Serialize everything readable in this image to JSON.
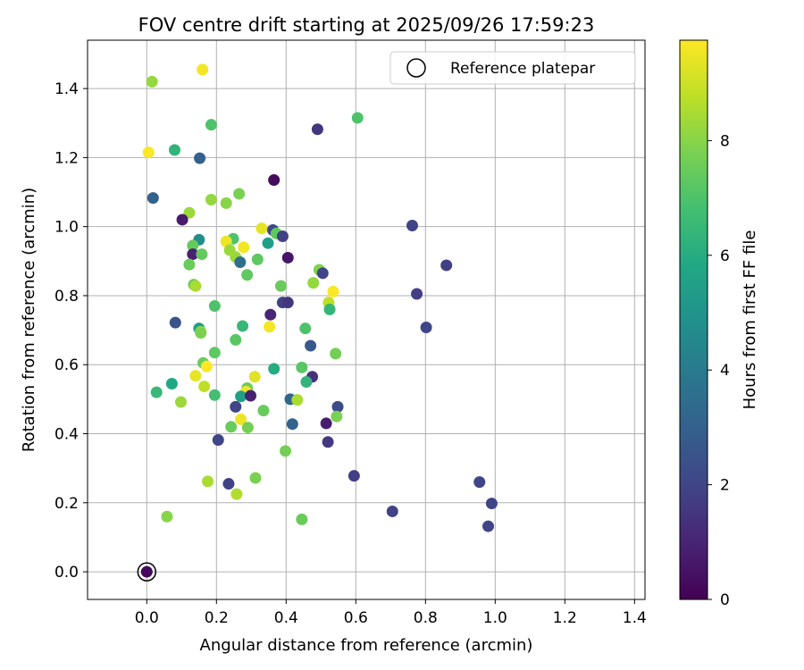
{
  "chart_data": {
    "type": "scatter",
    "title": "FOV centre drift starting at 2025/09/26 17:59:23",
    "xlabel": "Angular distance from reference (arcmin)",
    "ylabel": "Rotation from reference (arcmin)",
    "xlim": [
      -0.17,
      1.43
    ],
    "ylim": [
      -0.08,
      1.54
    ],
    "xticks": [
      0.0,
      0.2,
      0.4,
      0.6,
      0.8,
      1.0,
      1.2,
      1.4
    ],
    "xtick_labels": [
      "0.0",
      "0.2",
      "0.4",
      "0.6",
      "0.8",
      "1.0",
      "1.2",
      "1.4"
    ],
    "yticks": [
      0.0,
      0.2,
      0.4,
      0.6,
      0.8,
      1.0,
      1.2,
      1.4
    ],
    "ytick_labels": [
      "0.0",
      "0.2",
      "0.4",
      "0.6",
      "0.8",
      "1.0",
      "1.2",
      "1.4"
    ],
    "grid": true,
    "legend": {
      "position": "top-right",
      "entries": [
        "Reference platepar"
      ]
    },
    "reference_point": {
      "x": 0.0,
      "y": 0.0,
      "hours": 0.0
    },
    "colorbar": {
      "label": "Hours from first FF file",
      "colormap": "viridis",
      "range": [
        0,
        9.75
      ],
      "ticks": [
        0,
        2,
        4,
        6,
        8
      ],
      "tick_labels": [
        "0",
        "2",
        "4",
        "6",
        "8"
      ]
    },
    "points": [
      {
        "x": 0.16,
        "y": 1.455,
        "h": 9.6
      },
      {
        "x": 0.015,
        "y": 1.42,
        "h": 8.2
      },
      {
        "x": 0.605,
        "y": 1.315,
        "h": 7.0
      },
      {
        "x": 0.185,
        "y": 1.295,
        "h": 7.0
      },
      {
        "x": 0.49,
        "y": 1.282,
        "h": 1.5
      },
      {
        "x": 0.08,
        "y": 1.222,
        "h": 6.3
      },
      {
        "x": 0.005,
        "y": 1.215,
        "h": 9.7
      },
      {
        "x": 0.152,
        "y": 1.198,
        "h": 3.0
      },
      {
        "x": 0.365,
        "y": 1.135,
        "h": 0.3
      },
      {
        "x": 0.265,
        "y": 1.095,
        "h": 7.8
      },
      {
        "x": 0.018,
        "y": 1.083,
        "h": 3.0
      },
      {
        "x": 0.185,
        "y": 1.078,
        "h": 8.2
      },
      {
        "x": 0.228,
        "y": 1.068,
        "h": 8.0
      },
      {
        "x": 0.122,
        "y": 1.04,
        "h": 8.3
      },
      {
        "x": 0.102,
        "y": 1.02,
        "h": 0.7
      },
      {
        "x": 0.762,
        "y": 1.003,
        "h": 2.0
      },
      {
        "x": 0.33,
        "y": 0.995,
        "h": 9.4
      },
      {
        "x": 0.362,
        "y": 0.99,
        "h": 2.2
      },
      {
        "x": 0.372,
        "y": 0.98,
        "h": 7.3
      },
      {
        "x": 0.39,
        "y": 0.972,
        "h": 1.9
      },
      {
        "x": 0.248,
        "y": 0.965,
        "h": 7.0
      },
      {
        "x": 0.15,
        "y": 0.962,
        "h": 4.7
      },
      {
        "x": 0.228,
        "y": 0.957,
        "h": 9.5
      },
      {
        "x": 0.348,
        "y": 0.952,
        "h": 5.5
      },
      {
        "x": 0.132,
        "y": 0.945,
        "h": 7.4
      },
      {
        "x": 0.278,
        "y": 0.94,
        "h": 9.6
      },
      {
        "x": 0.238,
        "y": 0.932,
        "h": 8.3
      },
      {
        "x": 0.132,
        "y": 0.92,
        "h": 0.9
      },
      {
        "x": 0.158,
        "y": 0.92,
        "h": 7.4
      },
      {
        "x": 0.255,
        "y": 0.912,
        "h": 8.3
      },
      {
        "x": 0.405,
        "y": 0.91,
        "h": 0.6
      },
      {
        "x": 0.318,
        "y": 0.905,
        "h": 7.3
      },
      {
        "x": 0.268,
        "y": 0.897,
        "h": 3.5
      },
      {
        "x": 0.122,
        "y": 0.89,
        "h": 7.5
      },
      {
        "x": 0.86,
        "y": 0.888,
        "h": 1.8
      },
      {
        "x": 0.495,
        "y": 0.875,
        "h": 7.9
      },
      {
        "x": 0.505,
        "y": 0.865,
        "h": 2.0
      },
      {
        "x": 0.288,
        "y": 0.86,
        "h": 7.3
      },
      {
        "x": 0.478,
        "y": 0.837,
        "h": 8.2
      },
      {
        "x": 0.135,
        "y": 0.832,
        "h": 7.5
      },
      {
        "x": 0.14,
        "y": 0.828,
        "h": 8.5
      },
      {
        "x": 0.385,
        "y": 0.828,
        "h": 7.5
      },
      {
        "x": 0.535,
        "y": 0.812,
        "h": 9.7
      },
      {
        "x": 0.775,
        "y": 0.805,
        "h": 1.8
      },
      {
        "x": 0.39,
        "y": 0.78,
        "h": 1.9
      },
      {
        "x": 0.405,
        "y": 0.78,
        "h": 1.5
      },
      {
        "x": 0.522,
        "y": 0.78,
        "h": 8.8
      },
      {
        "x": 0.195,
        "y": 0.77,
        "h": 7.0
      },
      {
        "x": 0.525,
        "y": 0.76,
        "h": 6.4
      },
      {
        "x": 0.355,
        "y": 0.745,
        "h": 1.0
      },
      {
        "x": 0.082,
        "y": 0.722,
        "h": 2.5
      },
      {
        "x": 0.275,
        "y": 0.712,
        "h": 6.5
      },
      {
        "x": 0.352,
        "y": 0.71,
        "h": 9.6
      },
      {
        "x": 0.802,
        "y": 0.708,
        "h": 2.0
      },
      {
        "x": 0.15,
        "y": 0.705,
        "h": 5.4
      },
      {
        "x": 0.455,
        "y": 0.705,
        "h": 7.0
      },
      {
        "x": 0.155,
        "y": 0.695,
        "h": 8.5
      },
      {
        "x": 0.155,
        "y": 0.692,
        "h": 7.8
      },
      {
        "x": 0.255,
        "y": 0.672,
        "h": 7.2
      },
      {
        "x": 0.47,
        "y": 0.655,
        "h": 2.7
      },
      {
        "x": 0.195,
        "y": 0.635,
        "h": 7.3
      },
      {
        "x": 0.542,
        "y": 0.632,
        "h": 7.7
      },
      {
        "x": 0.162,
        "y": 0.605,
        "h": 7.5
      },
      {
        "x": 0.172,
        "y": 0.595,
        "h": 9.7
      },
      {
        "x": 0.365,
        "y": 0.588,
        "h": 6.0
      },
      {
        "x": 0.445,
        "y": 0.592,
        "h": 7.2
      },
      {
        "x": 0.475,
        "y": 0.565,
        "h": 1.4
      },
      {
        "x": 0.31,
        "y": 0.565,
        "h": 9.3
      },
      {
        "x": 0.14,
        "y": 0.568,
        "h": 9.4
      },
      {
        "x": 0.458,
        "y": 0.55,
        "h": 6.3
      },
      {
        "x": 0.072,
        "y": 0.545,
        "h": 5.8
      },
      {
        "x": 0.165,
        "y": 0.537,
        "h": 8.8
      },
      {
        "x": 0.288,
        "y": 0.532,
        "h": 7.5
      },
      {
        "x": 0.028,
        "y": 0.52,
        "h": 6.5
      },
      {
        "x": 0.285,
        "y": 0.522,
        "h": 9.5
      },
      {
        "x": 0.195,
        "y": 0.512,
        "h": 6.8
      },
      {
        "x": 0.27,
        "y": 0.508,
        "h": 5.5
      },
      {
        "x": 0.298,
        "y": 0.51,
        "h": 0.9
      },
      {
        "x": 0.412,
        "y": 0.5,
        "h": 3.2
      },
      {
        "x": 0.432,
        "y": 0.498,
        "h": 8.5
      },
      {
        "x": 0.098,
        "y": 0.492,
        "h": 8.3
      },
      {
        "x": 0.255,
        "y": 0.478,
        "h": 2.0
      },
      {
        "x": 0.548,
        "y": 0.478,
        "h": 2.2
      },
      {
        "x": 0.335,
        "y": 0.467,
        "h": 7.5
      },
      {
        "x": 0.545,
        "y": 0.45,
        "h": 7.8
      },
      {
        "x": 0.27,
        "y": 0.442,
        "h": 9.5
      },
      {
        "x": 0.515,
        "y": 0.43,
        "h": 0.8
      },
      {
        "x": 0.418,
        "y": 0.428,
        "h": 3.0
      },
      {
        "x": 0.242,
        "y": 0.42,
        "h": 7.5
      },
      {
        "x": 0.29,
        "y": 0.418,
        "h": 7.7
      },
      {
        "x": 0.205,
        "y": 0.382,
        "h": 2.0
      },
      {
        "x": 0.52,
        "y": 0.376,
        "h": 1.6
      },
      {
        "x": 0.398,
        "y": 0.35,
        "h": 7.7
      },
      {
        "x": 0.595,
        "y": 0.278,
        "h": 1.8
      },
      {
        "x": 0.312,
        "y": 0.272,
        "h": 7.8
      },
      {
        "x": 0.175,
        "y": 0.262,
        "h": 8.5
      },
      {
        "x": 0.235,
        "y": 0.255,
        "h": 1.9
      },
      {
        "x": 0.955,
        "y": 0.26,
        "h": 2.0
      },
      {
        "x": 0.258,
        "y": 0.225,
        "h": 8.6
      },
      {
        "x": 0.99,
        "y": 0.198,
        "h": 2.0
      },
      {
        "x": 0.705,
        "y": 0.175,
        "h": 1.9
      },
      {
        "x": 0.058,
        "y": 0.16,
        "h": 8.0
      },
      {
        "x": 0.445,
        "y": 0.152,
        "h": 7.5
      },
      {
        "x": 0.98,
        "y": 0.132,
        "h": 2.0
      },
      {
        "x": 0.0,
        "y": 0.0,
        "h": 0.2
      }
    ]
  }
}
